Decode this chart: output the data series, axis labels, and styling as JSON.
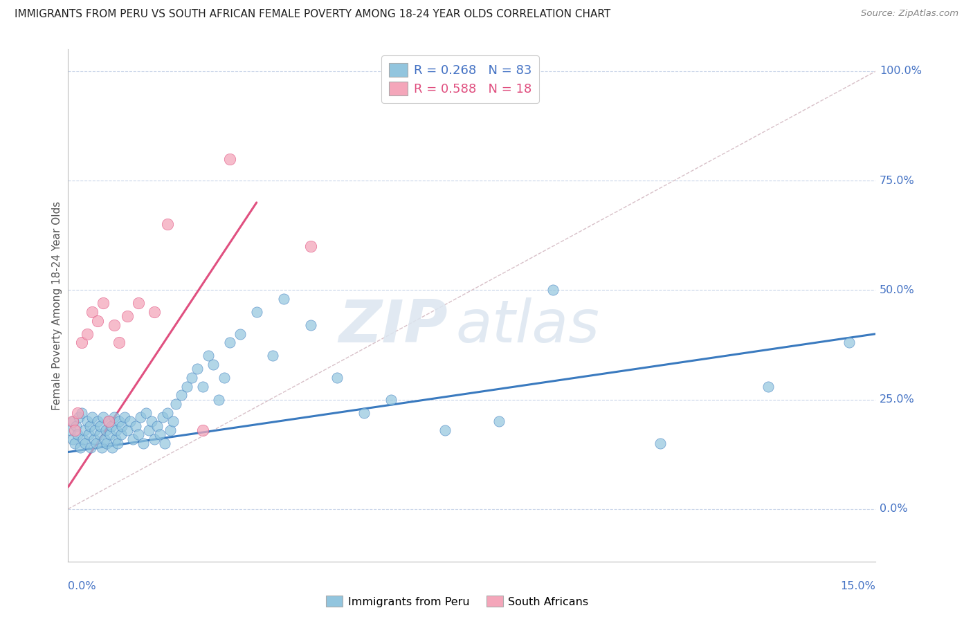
{
  "title": "IMMIGRANTS FROM PERU VS SOUTH AFRICAN FEMALE POVERTY AMONG 18-24 YEAR OLDS CORRELATION CHART",
  "source": "Source: ZipAtlas.com",
  "ylabel_label": "Female Poverty Among 18-24 Year Olds",
  "legend_label1": "Immigrants from Peru",
  "legend_label2": "South Africans",
  "R1": 0.268,
  "N1": 83,
  "R2": 0.588,
  "N2": 18,
  "color_blue": "#92c5de",
  "color_pink": "#f4a6ba",
  "color_blue_dark": "#3a7abf",
  "color_pink_dark": "#e05080",
  "color_text_blue": "#4472c4",
  "color_text_pink": "#e05080",
  "color_grid": "#c8d4e8",
  "color_ref_line": "#d8c0c8",
  "xlim": [
    0.0,
    15.0
  ],
  "ylim": [
    -12.0,
    105.0
  ],
  "blue_scatter_x": [
    0.05,
    0.08,
    0.1,
    0.12,
    0.15,
    0.18,
    0.2,
    0.22,
    0.25,
    0.28,
    0.3,
    0.32,
    0.35,
    0.38,
    0.4,
    0.42,
    0.45,
    0.48,
    0.5,
    0.52,
    0.55,
    0.58,
    0.6,
    0.62,
    0.65,
    0.68,
    0.7,
    0.72,
    0.75,
    0.78,
    0.8,
    0.82,
    0.85,
    0.88,
    0.9,
    0.92,
    0.95,
    0.98,
    1.0,
    1.05,
    1.1,
    1.15,
    1.2,
    1.25,
    1.3,
    1.35,
    1.4,
    1.45,
    1.5,
    1.55,
    1.6,
    1.65,
    1.7,
    1.75,
    1.8,
    1.85,
    1.9,
    1.95,
    2.0,
    2.1,
    2.2,
    2.3,
    2.4,
    2.5,
    2.6,
    2.7,
    2.8,
    2.9,
    3.0,
    3.2,
    3.5,
    3.8,
    4.0,
    4.5,
    5.0,
    5.5,
    6.0,
    7.0,
    8.0,
    9.0,
    11.0,
    13.0,
    14.5
  ],
  "blue_scatter_y": [
    18,
    16,
    20,
    15,
    19,
    17,
    21,
    14,
    22,
    16,
    18,
    15,
    20,
    17,
    19,
    14,
    21,
    16,
    18,
    15,
    20,
    17,
    19,
    14,
    21,
    16,
    18,
    15,
    20,
    17,
    19,
    14,
    21,
    16,
    18,
    15,
    20,
    17,
    19,
    21,
    18,
    20,
    16,
    19,
    17,
    21,
    15,
    22,
    18,
    20,
    16,
    19,
    17,
    21,
    15,
    22,
    18,
    20,
    24,
    26,
    28,
    30,
    32,
    28,
    35,
    33,
    25,
    30,
    38,
    40,
    45,
    35,
    48,
    42,
    30,
    22,
    25,
    18,
    20,
    50,
    15,
    28,
    38
  ],
  "pink_scatter_x": [
    0.08,
    0.12,
    0.18,
    0.25,
    0.35,
    0.45,
    0.55,
    0.65,
    0.75,
    0.85,
    0.95,
    1.1,
    1.3,
    1.6,
    1.85,
    2.5,
    3.0,
    4.5
  ],
  "pink_scatter_y": [
    20,
    18,
    22,
    38,
    40,
    45,
    43,
    47,
    20,
    42,
    38,
    44,
    47,
    45,
    65,
    18,
    80,
    60
  ],
  "blue_line_x": [
    0.0,
    15.0
  ],
  "blue_line_y": [
    13.0,
    40.0
  ],
  "pink_line_x": [
    0.0,
    3.5
  ],
  "pink_line_y": [
    5.0,
    70.0
  ],
  "ref_line_x": [
    0.0,
    15.0
  ],
  "ref_line_y": [
    0.0,
    100.0
  ],
  "yticks": [
    0,
    25,
    50,
    75,
    100
  ],
  "ytick_labels": [
    "0.0%",
    "25.0%",
    "50.0%",
    "75.0%",
    "100.0%"
  ]
}
